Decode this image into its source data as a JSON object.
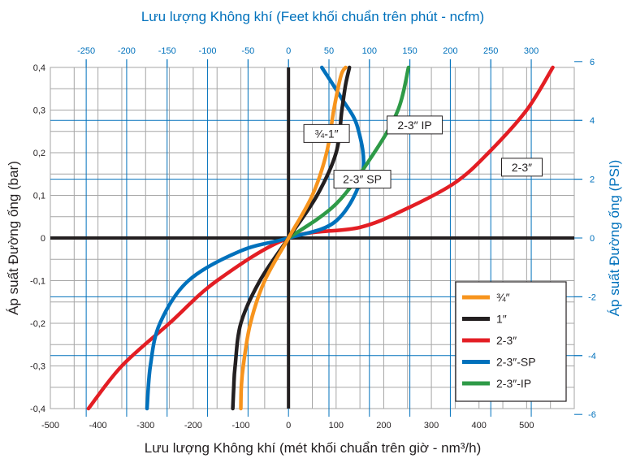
{
  "chart_data": {
    "type": "line",
    "title": "Lưu lượng Không khí (Feet khối chuẩn trên phút - ncfm)",
    "xlabel": "Lưu lượng Không khí (mét khối chuẩn trên giờ - nm³/h)",
    "ylabel": "Áp suất Đường ống (bar)",
    "y2label": "Áp suất Đường ống (PSI)",
    "xlim": [
      -500,
      600
    ],
    "ylim": [
      -0.4,
      0.4
    ],
    "x_ticks": [
      "-500",
      "-400",
      "-300",
      "-200",
      "-100",
      "0",
      "100",
      "200",
      "300",
      "400",
      "500"
    ],
    "y_ticks": [
      "0,4",
      "0,3",
      "0,2",
      "0,1",
      "0",
      "-0,1",
      "-0,2",
      "-0,3",
      "-0,4"
    ],
    "x2_ticks": [
      {
        "label": "-250",
        "value": -250
      },
      {
        "label": "-200",
        "value": -200
      },
      {
        "label": "-150",
        "value": -150
      },
      {
        "label": "-100",
        "value": -100
      },
      {
        "label": "-50",
        "value": -50
      },
      {
        "label": "0",
        "value": 0
      },
      {
        "label": "50",
        "value": 50
      },
      {
        "label": "100",
        "value": 100
      },
      {
        "label": "150",
        "value": 150
      },
      {
        "label": "200",
        "value": 200
      },
      {
        "label": "250",
        "value": 250
      },
      {
        "label": "300",
        "value": 300
      }
    ],
    "y2_ticks": [
      {
        "label": "6",
        "value": 6
      },
      {
        "label": "4",
        "value": 4
      },
      {
        "label": "2",
        "value": 2
      },
      {
        "label": "0",
        "value": 0
      },
      {
        "label": "-2",
        "value": -2
      },
      {
        "label": "-4",
        "value": -4
      },
      {
        "label": "-6",
        "value": -6
      }
    ],
    "grid": true,
    "legend_position": "bottom-right",
    "series": [
      {
        "name": "¾″",
        "color": "#f7941d",
        "x": [
          -100,
          -99,
          -95,
          -80,
          -50,
          0,
          50,
          80,
          95,
          110,
          120
        ],
        "y": [
          -0.4,
          -0.35,
          -0.3,
          -0.2,
          -0.1,
          0,
          0.1,
          0.2,
          0.3,
          0.38,
          0.4
        ]
      },
      {
        "name": "1″",
        "color": "#231f20",
        "x": [
          -117,
          -115,
          -112,
          -100,
          -60,
          0,
          60,
          100,
          112,
          120,
          128
        ],
        "y": [
          -0.4,
          -0.35,
          -0.3,
          -0.2,
          -0.1,
          0,
          0.1,
          0.2,
          0.3,
          0.36,
          0.4
        ]
      },
      {
        "name": "2-3″",
        "color": "#e31e24",
        "x": [
          -420,
          -350,
          -250,
          -150,
          0,
          150,
          250,
          350,
          420,
          500,
          555
        ],
        "y": [
          -0.4,
          -0.3,
          -0.2,
          -0.1,
          0,
          0.025,
          0.07,
          0.13,
          0.2,
          0.3,
          0.4
        ]
      },
      {
        "name": "2-3″-SP",
        "color": "#0071bc",
        "x": [
          -297,
          -290,
          -270,
          -210,
          -100,
          0,
          100,
          155,
          145,
          110,
          70
        ],
        "y": [
          -0.4,
          -0.3,
          -0.2,
          -0.1,
          -0.03,
          0,
          0.04,
          0.15,
          0.26,
          0.33,
          0.4
        ]
      },
      {
        "name": "2-3″-IP",
        "color": "#2e9a47",
        "x": [
          0,
          100,
          180,
          230,
          252
        ],
        "y": [
          0,
          0.08,
          0.2,
          0.3,
          0.4
        ]
      }
    ],
    "annotations": [
      {
        "text": "¾-1″",
        "x": 80,
        "y": 0.245
      },
      {
        "text": "2-3″ IP",
        "x": 265,
        "y": 0.265
      },
      {
        "text": "2-3″ SP",
        "x": 155,
        "y": 0.138
      },
      {
        "text": "2-3″",
        "x": 490,
        "y": 0.166
      }
    ]
  }
}
